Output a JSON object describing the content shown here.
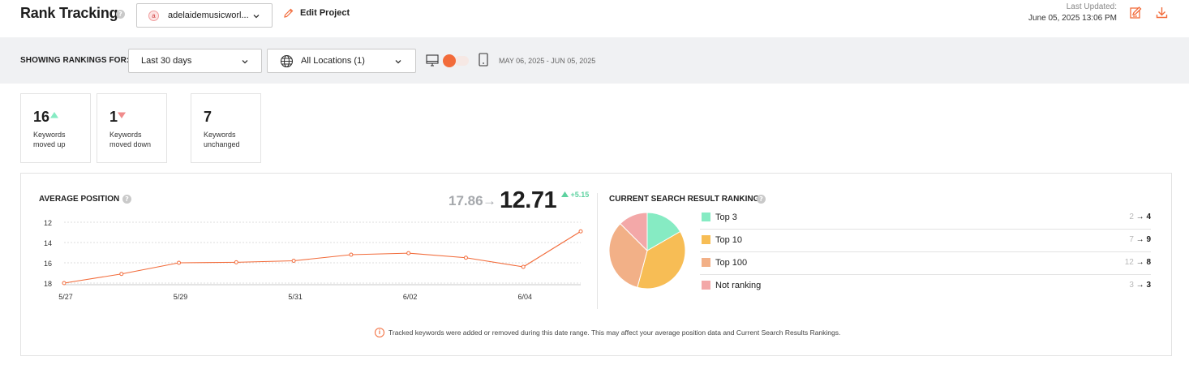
{
  "header": {
    "title": "Rank Tracking",
    "help": "?",
    "project": {
      "favicon_letter": "a",
      "name": "adelaidemusicworl..."
    },
    "edit_project_label": "Edit Project",
    "last_updated_label": "Last Updated:",
    "last_updated_value": "June 05, 2025 13:06 PM",
    "icons": [
      "edit-report-icon",
      "download-icon"
    ]
  },
  "filters": {
    "label": "SHOWING RANKINGS FOR:",
    "period": "Last 30 days",
    "location": "All Locations (1)",
    "device": "desktop",
    "date_range": "MAY 06, 2025 - JUN 05, 2025"
  },
  "stats": [
    {
      "value": "16",
      "direction": "up",
      "desc_line1": "Keywords",
      "desc_line2": "moved up"
    },
    {
      "value": "1",
      "direction": "down",
      "desc_line1": "Keywords",
      "desc_line2": "moved down"
    },
    {
      "value": "7",
      "direction": "none",
      "desc_line1": "Keywords",
      "desc_line2": "unchanged"
    }
  ],
  "average_position": {
    "title": "AVERAGE POSITION",
    "previous": "17.86",
    "arrow": "→",
    "current": "12.71",
    "change": "+5.15"
  },
  "search_rankings": {
    "title": "CURRENT SEARCH RESULT RANKINGS",
    "arrow": "→",
    "rows": [
      {
        "label": "Top 3",
        "from": "2",
        "to": "4",
        "color": "#86ebc3"
      },
      {
        "label": "Top 10",
        "from": "7",
        "to": "9",
        "color": "#f7bd55"
      },
      {
        "label": "Top 100",
        "from": "12",
        "to": "8",
        "color": "#f2b087"
      },
      {
        "label": "Not ranking",
        "from": "3",
        "to": "3",
        "color": "#f3a8a8"
      }
    ]
  },
  "notice": {
    "icon": "i",
    "text": "Tracked keywords were added or removed during this date range. This may affect your average position data and Current Search Results Rankings."
  },
  "chart_data": [
    {
      "type": "line",
      "title": "AVERAGE POSITION",
      "x": [
        "5/27",
        "5/28",
        "5/29",
        "5/30",
        "5/31",
        "6/01",
        "6/02",
        "6/03",
        "6/04",
        "6/05"
      ],
      "x_tick_labels": [
        "5/27",
        "5/29",
        "5/31",
        "6/02",
        "6/04"
      ],
      "y_ticks": [
        "12",
        "14",
        "16",
        "18"
      ],
      "series": [
        {
          "values": [
            18.0,
            17.1,
            16.0,
            15.95,
            15.8,
            15.2,
            15.05,
            15.5,
            16.4,
            12.9
          ]
        }
      ],
      "ylim": [
        18,
        12
      ],
      "y_reversed": true,
      "color": "#f26b3a",
      "grid": "horizontal dashed"
    },
    {
      "type": "pie",
      "title": "CURRENT SEARCH RESULT RANKINGS",
      "categories": [
        "Top 3",
        "Top 10",
        "Top 100",
        "Not ranking"
      ],
      "values": [
        4,
        9,
        8,
        3
      ],
      "colors": [
        "#86ebc3",
        "#f7bd55",
        "#f2b087",
        "#f3a8a8"
      ]
    }
  ]
}
